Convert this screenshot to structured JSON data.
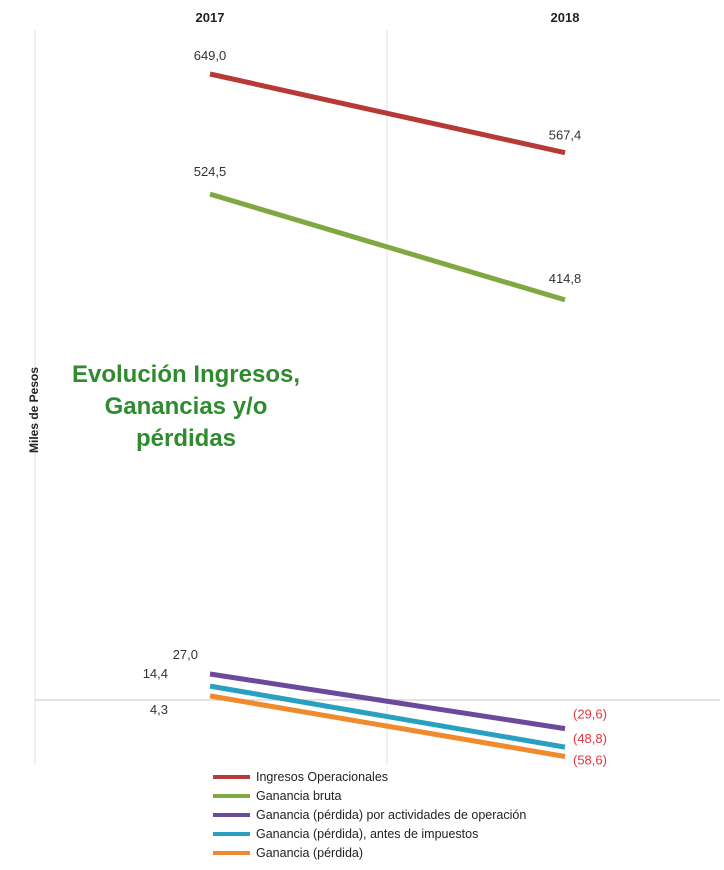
{
  "chart_data": {
    "type": "line",
    "title_lines": [
      "Evolución Ingresos,",
      "Ganancias y/o",
      "pérdidas"
    ],
    "title_color": "#2e8b2e",
    "ylabel": "Miles de Pesos",
    "categories": [
      "2017",
      "2018"
    ],
    "ylim": [
      -100,
      700
    ],
    "grid": false,
    "legend_position": "bottom",
    "negative_label_color": "#e8333d",
    "series": [
      {
        "name": "Ingresos Operacionales",
        "values": [
          649.0,
          567.4
        ],
        "labels": [
          "649,0",
          "567,4"
        ],
        "color": "#b83a36"
      },
      {
        "name": "Ganancia bruta",
        "values": [
          524.5,
          414.8
        ],
        "labels": [
          "524,5",
          "414,8"
        ],
        "color": "#7fa940"
      },
      {
        "name": "Ganancia (pérdida) por actividades de operación",
        "values": [
          27.0,
          -29.6
        ],
        "labels": [
          "27,0",
          "(29,6)"
        ],
        "color": "#6b4a9b"
      },
      {
        "name": "Ganancia (pérdida), antes de impuestos",
        "values": [
          14.4,
          -48.8
        ],
        "labels": [
          "14,4",
          "(48,8)"
        ],
        "color": "#2aa0c0"
      },
      {
        "name": "Ganancia (pérdida)",
        "values": [
          4.3,
          -58.6
        ],
        "labels": [
          "4,3",
          "(58,6)"
        ],
        "color": "#ef8a2e"
      }
    ]
  }
}
